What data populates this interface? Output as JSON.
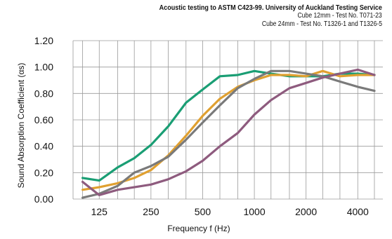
{
  "chart_data": {
    "type": "line",
    "title": "Acoustic testing to ASTM C423-99. University of Auckland Testing Service",
    "subtitles": [
      "Cube 12mm - Test No. T071-23",
      "Cube 24mm - Test No. T1326-1  and  T1326-5"
    ],
    "xlabel": "Frequency f (Hz)",
    "ylabel": "Sound Absorption Coefficient (αs)",
    "xscale": "log",
    "xlim": [
      88,
      5600
    ],
    "ylim": [
      0,
      1.2
    ],
    "grid": true,
    "x_ticks": [
      "125",
      "250",
      "500",
      "1000",
      "2000",
      "4000"
    ],
    "x_tick_values": [
      125,
      250,
      500,
      1000,
      2000,
      4000
    ],
    "y_ticks": [
      "0.00",
      "0.20",
      "0.40",
      "0.60",
      "0.80",
      "1.00",
      "1.20"
    ],
    "y_tick_values": [
      0,
      0.2,
      0.4,
      0.6,
      0.8,
      1.0,
      1.2
    ],
    "x": [
      100,
      125,
      160,
      200,
      250,
      315,
      400,
      500,
      630,
      800,
      1000,
      1250,
      1600,
      2000,
      2500,
      3150,
      4000,
      5000
    ],
    "series": [
      {
        "color": "#1a9e74",
        "values": [
          0.16,
          0.14,
          0.24,
          0.31,
          0.41,
          0.55,
          0.73,
          0.83,
          0.93,
          0.94,
          0.97,
          0.95,
          0.93,
          0.93,
          0.93,
          0.95,
          0.95,
          0.94
        ]
      },
      {
        "color": "#e0a030",
        "values": [
          0.07,
          0.09,
          0.12,
          0.16,
          0.22,
          0.33,
          0.48,
          0.63,
          0.76,
          0.85,
          0.9,
          0.94,
          0.94,
          0.93,
          0.97,
          0.93,
          0.94,
          0.94
        ]
      },
      {
        "color": "#7a7a7a",
        "values": [
          0.01,
          0.04,
          0.1,
          0.2,
          0.25,
          0.32,
          0.45,
          0.58,
          0.71,
          0.84,
          0.91,
          0.97,
          0.97,
          0.95,
          0.93,
          0.89,
          0.85,
          0.82
        ]
      },
      {
        "color": "#8e5b7e",
        "values": [
          0.13,
          0.03,
          0.07,
          0.09,
          0.11,
          0.15,
          0.21,
          0.29,
          0.4,
          0.5,
          0.64,
          0.75,
          0.84,
          0.88,
          0.92,
          0.95,
          0.98,
          0.94
        ]
      }
    ]
  }
}
